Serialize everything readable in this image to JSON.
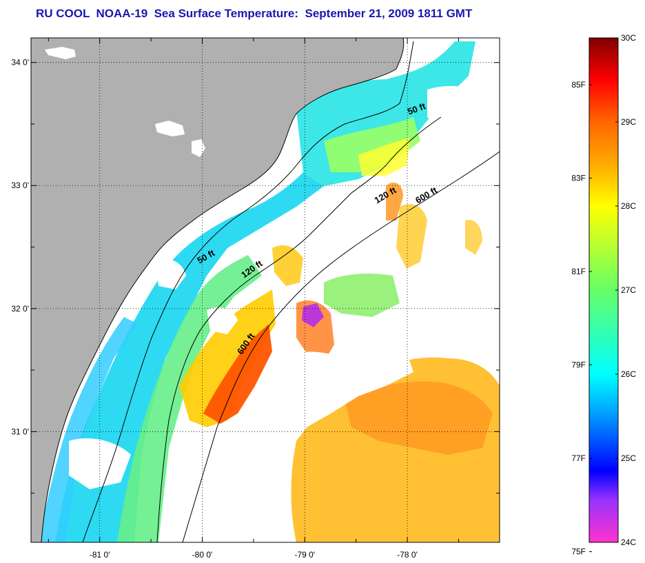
{
  "header": {
    "title": "RU COOL  NOAA-19  Sea Surface Temperature:  September 21, 2009 1811 GMT"
  },
  "map": {
    "lon_range": [
      -81.67,
      -77.1
    ],
    "lat_range": [
      30.1,
      34.2
    ],
    "lon_ticks": [
      {
        "value": -81,
        "label": "-81 0'"
      },
      {
        "value": -80,
        "label": "-80 0'"
      },
      {
        "value": -79,
        "label": "-79 0'"
      },
      {
        "value": -78,
        "label": "-78 0'"
      }
    ],
    "lat_ticks": [
      {
        "value": 34,
        "label": "34 0'"
      },
      {
        "value": 33,
        "label": "33 0'"
      },
      {
        "value": 32,
        "label": "32 0'"
      },
      {
        "value": 31,
        "label": "31 0'"
      }
    ],
    "contour_labels": [
      {
        "text": "50 ft",
        "lon": -77.9,
        "lat": 33.6
      },
      {
        "text": "120 ft",
        "lon": -78.2,
        "lat": 32.9
      },
      {
        "text": "600 ft",
        "lon": -77.8,
        "lat": 32.9
      },
      {
        "text": "50 ft",
        "lon": -79.95,
        "lat": 32.4
      },
      {
        "text": "120 ft",
        "lon": -79.5,
        "lat": 32.3
      },
      {
        "text": "600 ft",
        "lon": -79.55,
        "lat": 31.7
      }
    ],
    "colors": {
      "land": "#b0b0b0",
      "cloud": "#ffffff"
    }
  },
  "colorbar": {
    "celsius_labels": [
      {
        "value": 30,
        "label": "30C"
      },
      {
        "value": 29,
        "label": "29C"
      },
      {
        "value": 28,
        "label": "28C"
      },
      {
        "value": 27,
        "label": "27C"
      },
      {
        "value": 26,
        "label": "26C"
      },
      {
        "value": 25,
        "label": "25C"
      },
      {
        "value": 24,
        "label": "24C"
      }
    ],
    "fahrenheit_labels": [
      {
        "value": 85,
        "label": "85F"
      },
      {
        "value": 83,
        "label": "83F"
      },
      {
        "value": 81,
        "label": "81F"
      },
      {
        "value": 79,
        "label": "79F"
      },
      {
        "value": 77,
        "label": "77F"
      },
      {
        "value": 75,
        "label": "75F"
      }
    ],
    "stops": [
      {
        "c": 24.0,
        "color": "#ff33cc"
      },
      {
        "c": 24.5,
        "color": "#9933ff"
      },
      {
        "c": 24.85,
        "color": "#0000ff"
      },
      {
        "c": 25.5,
        "color": "#0099ff"
      },
      {
        "c": 26.0,
        "color": "#00ffff"
      },
      {
        "c": 27.0,
        "color": "#66ff66"
      },
      {
        "c": 28.0,
        "color": "#ffff00"
      },
      {
        "c": 28.5,
        "color": "#ffaa00"
      },
      {
        "c": 29.0,
        "color": "#ff6600"
      },
      {
        "c": 29.5,
        "color": "#ff0000"
      },
      {
        "c": 30.0,
        "color": "#800000"
      }
    ]
  }
}
